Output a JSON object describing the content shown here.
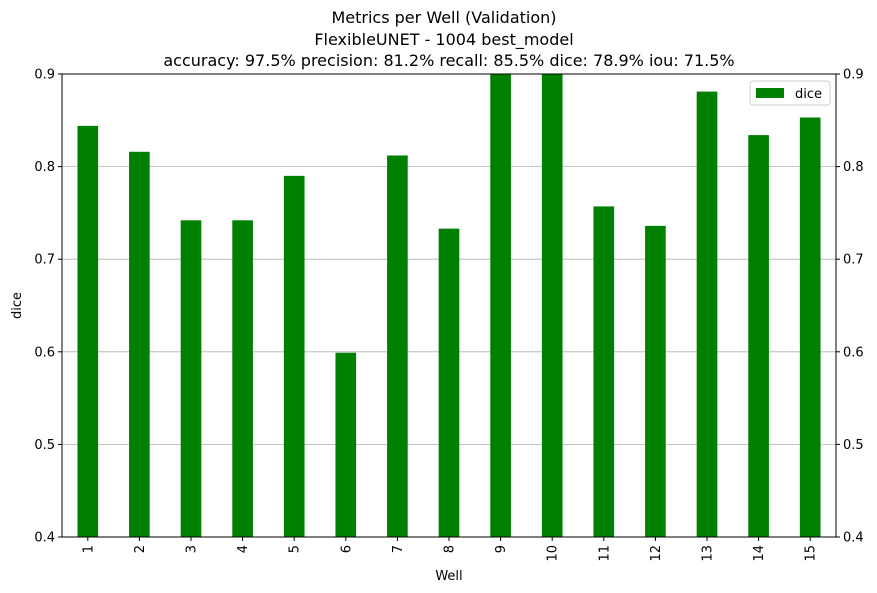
{
  "chart_data": {
    "type": "bar",
    "title_lines": [
      "Metrics per Well (Validation)",
      "FlexibleUNET - 1004 best_model",
      "accuracy: 97.5% precision: 81.2% recall: 85.5% dice: 78.9% iou: 71.5%"
    ],
    "xlabel": "Well",
    "ylabel": "dice",
    "categories": [
      "1",
      "2",
      "3",
      "4",
      "5",
      "6",
      "7",
      "8",
      "9",
      "10",
      "11",
      "12",
      "13",
      "14",
      "15"
    ],
    "series": [
      {
        "name": "dice",
        "color": "#008000",
        "values": [
          0.844,
          0.816,
          0.742,
          0.742,
          0.79,
          0.599,
          0.812,
          0.733,
          0.905,
          0.905,
          0.757,
          0.736,
          0.881,
          0.834,
          0.853
        ]
      }
    ],
    "ylim": [
      0.4,
      0.9
    ],
    "yticks": [
      "0.4",
      "0.5",
      "0.6",
      "0.7",
      "0.8",
      "0.9"
    ],
    "ytick_values": [
      0.4,
      0.5,
      0.6,
      0.7,
      0.8,
      0.9
    ],
    "grid": "horizontal",
    "legend_position": "top-right",
    "secondary_y_axis": true
  }
}
